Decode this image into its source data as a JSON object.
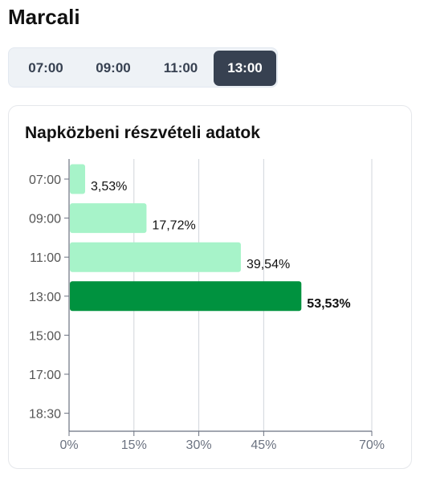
{
  "header": {
    "title": "Marcali"
  },
  "tabs": [
    {
      "label": "07:00",
      "active": false
    },
    {
      "label": "09:00",
      "active": false
    },
    {
      "label": "11:00",
      "active": false
    },
    {
      "label": "13:00",
      "active": true
    }
  ],
  "card": {
    "title": "Napközbeni részvételi adatok"
  },
  "colors": {
    "bar_default": "#a7f3c9",
    "bar_active": "#00923f",
    "tab_active_bg": "#374151",
    "tabs_bg": "#eef2f6"
  },
  "chart_data": {
    "type": "bar",
    "orientation": "horizontal",
    "categories": [
      "07:00",
      "09:00",
      "11:00",
      "13:00",
      "15:00",
      "17:00",
      "18:30"
    ],
    "values": [
      3.53,
      17.72,
      39.54,
      53.53,
      null,
      null,
      null
    ],
    "data_labels": [
      "3,53%",
      "17,72%",
      "39,54%",
      "53,53%",
      "",
      "",
      ""
    ],
    "highlighted_category": "13:00",
    "x_ticks": [
      0,
      15,
      30,
      45,
      70
    ],
    "x_tick_labels": [
      "0%",
      "15%",
      "30%",
      "45%",
      "70%"
    ],
    "xlim": [
      0,
      70
    ],
    "grid": true,
    "legend": "none",
    "title": "Napközbeni részvételi adatok"
  }
}
